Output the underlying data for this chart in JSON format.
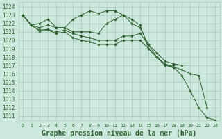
{
  "title": "Graphe pression niveau de la mer (hPa)",
  "background_color": "#cce8dc",
  "grid_color": "#a8c8b8",
  "line_color": "#2d6030",
  "font_color": "#2d6030",
  "series": [
    {
      "x": [
        0,
        1,
        2,
        3,
        4,
        5,
        6,
        7,
        8,
        9,
        10,
        11,
        12,
        13,
        14,
        15,
        16,
        17,
        18
      ],
      "y": [
        1023,
        1021.8,
        1021.1,
        1021.2,
        1020.8,
        1021.0,
        1020.3,
        1020.0,
        1019.8,
        1019.5,
        1019.5,
        1019.5,
        1020.0,
        1020.0,
        1020.0,
        1019.0,
        1018.0,
        1017.0,
        1017.0
      ]
    },
    {
      "x": [
        0,
        1,
        2,
        3,
        4,
        5,
        6,
        7,
        8,
        9,
        10,
        11,
        12,
        13,
        14,
        15,
        16,
        17,
        18,
        19
      ],
      "y": [
        1023,
        1021.8,
        1021.2,
        1021.3,
        1021.0,
        1021.2,
        1020.8,
        1020.5,
        1020.3,
        1020.0,
        1020.0,
        1020.0,
        1020.5,
        1020.5,
        1020.8,
        1019.5,
        1018.5,
        1017.5,
        1017.2,
        1017.0
      ]
    },
    {
      "x": [
        0,
        1,
        2,
        3,
        4,
        5,
        6,
        7,
        8,
        9,
        10,
        11,
        12,
        13,
        14,
        15,
        16,
        17,
        18,
        19,
        20,
        21,
        22
      ],
      "y": [
        1023,
        1021.8,
        1021.5,
        1021.8,
        1021.5,
        1021.5,
        1021.0,
        1021.0,
        1021.0,
        1020.8,
        1022.0,
        1022.5,
        1023.0,
        1022.5,
        1021.8,
        1019.0,
        1018.0,
        1017.2,
        1016.8,
        1016.5,
        1016.0,
        1015.8,
        1012.0
      ]
    },
    {
      "x": [
        0,
        1,
        2,
        3,
        4,
        5,
        6,
        7,
        8,
        9,
        10,
        11,
        12,
        13,
        14,
        15,
        16,
        17,
        18,
        19,
        20,
        21,
        22,
        23
      ],
      "y": [
        1023,
        1021.8,
        1022.0,
        1022.5,
        1021.5,
        1021.5,
        1022.5,
        1023.0,
        1023.5,
        1023.2,
        1023.5,
        1023.5,
        1023.0,
        1022.0,
        1021.5,
        1019.5,
        1018.0,
        1017.0,
        1016.8,
        1015.8,
        1014.0,
        1012.0,
        1010.8,
        1010.5
      ]
    }
  ],
  "yticks": [
    1011,
    1012,
    1013,
    1014,
    1015,
    1016,
    1017,
    1018,
    1019,
    1020,
    1021,
    1022,
    1023,
    1024
  ],
  "xticks": [
    0,
    1,
    2,
    3,
    4,
    5,
    6,
    7,
    8,
    9,
    10,
    11,
    12,
    13,
    14,
    15,
    16,
    17,
    18,
    19,
    20,
    21,
    22,
    23
  ],
  "ylim": [
    1010.5,
    1024.5
  ],
  "xlim": [
    -0.5,
    23.5
  ],
  "ylabel_fontsize": 5.5,
  "xlabel_fontsize": 4.8,
  "title_fontsize": 7.0
}
